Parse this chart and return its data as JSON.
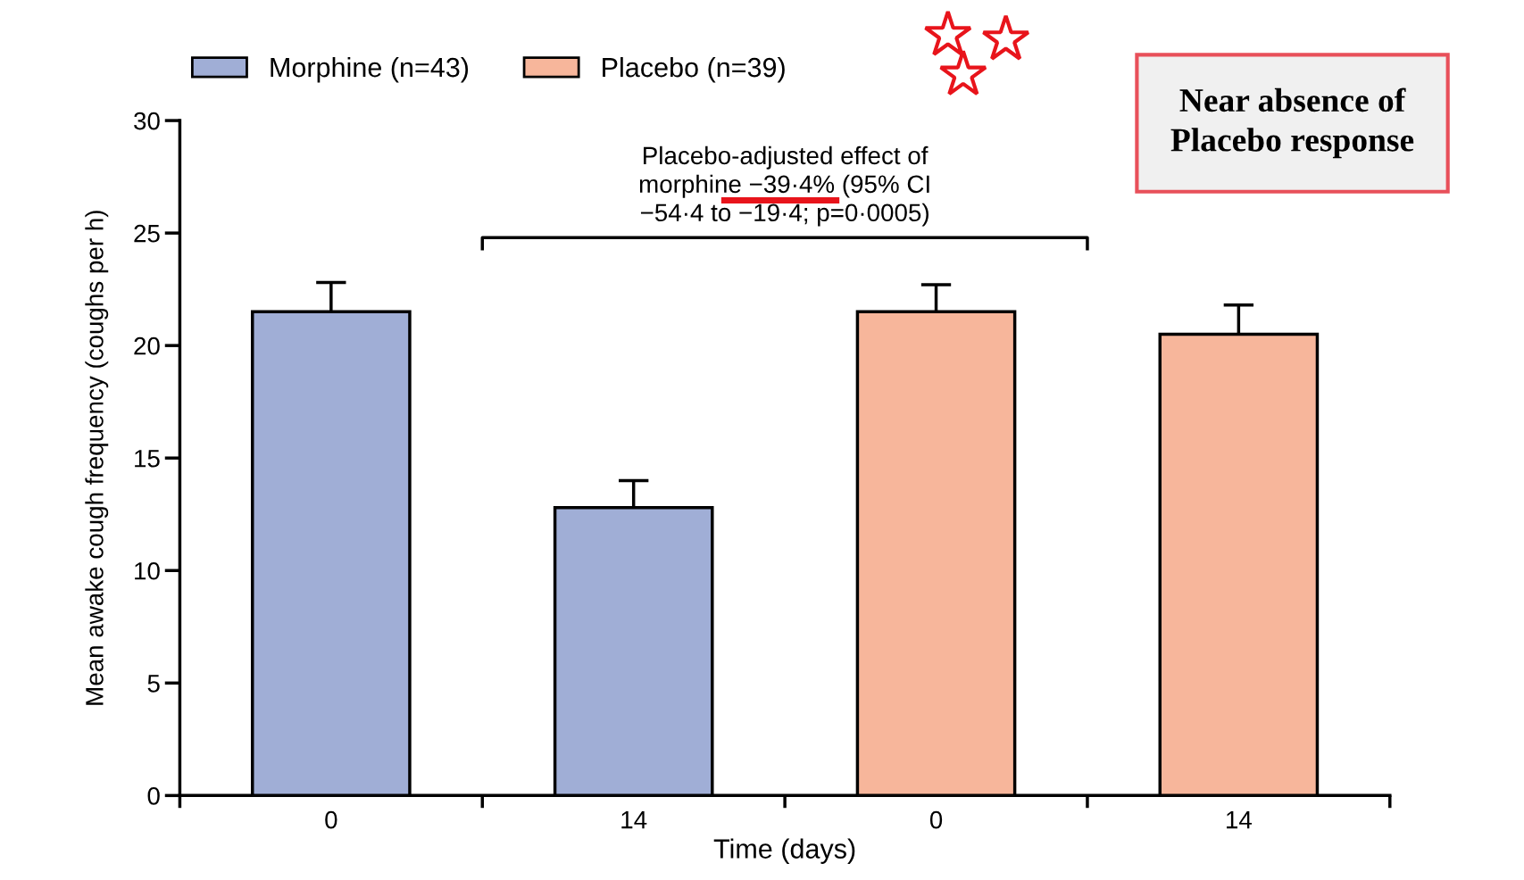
{
  "chart_data": {
    "type": "bar",
    "xlabel": "Time (days)",
    "ylabel": "Mean awake cough frequency (coughs per h)",
    "categories": [
      "0",
      "14",
      "0",
      "14"
    ],
    "series": [
      {
        "name": "Morphine (n=43)",
        "color": "#a0aed6",
        "values": [
          21.5,
          12.8,
          null,
          null
        ],
        "errors": [
          1.3,
          1.2,
          null,
          null
        ]
      },
      {
        "name": "Placebo (n=39)",
        "color": "#f7b69b",
        "values": [
          null,
          null,
          21.5,
          20.5
        ],
        "errors": [
          null,
          null,
          1.2,
          1.3
        ]
      }
    ],
    "ylim": [
      0,
      30
    ],
    "yticks": [
      0,
      5,
      10,
      15,
      20,
      25,
      30
    ],
    "grid": false,
    "legend": "top left",
    "annotations": [
      "Placebo-adjusted effect of\nmorphine −39·4% (95% CI\n−54·4 to −19·4; p=0·0005)",
      "Near absence of\nPlacebo response"
    ]
  }
}
